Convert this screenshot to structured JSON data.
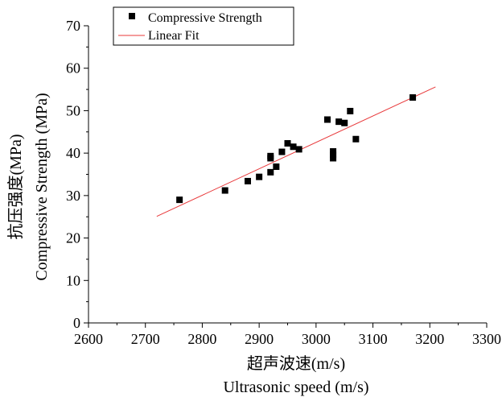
{
  "chart_data": {
    "type": "scatter",
    "title": "",
    "xlabel_cn": "超声波速(m/s)",
    "xlabel_en": "Ultrasonic speed (m/s)",
    "ylabel_cn": "抗压强度(MPa)",
    "ylabel_en": "Compressive Strength (MPa)",
    "xlim": [
      2600,
      3300
    ],
    "ylim": [
      0,
      70
    ],
    "x_ticks": [
      "2600",
      "2700",
      "2800",
      "2900",
      "3000",
      "3100",
      "3200",
      "3300"
    ],
    "y_ticks": [
      "0",
      "10",
      "20",
      "30",
      "40",
      "50",
      "60",
      "70"
    ],
    "grid": false,
    "legend_position": "top-left",
    "series": [
      {
        "name": "Compressive Strength",
        "kind": "scatter",
        "marker": "square",
        "color": "#000000",
        "points": [
          {
            "x": 2760,
            "y": 29.0
          },
          {
            "x": 2840,
            "y": 31.2
          },
          {
            "x": 2880,
            "y": 33.4
          },
          {
            "x": 2900,
            "y": 34.4
          },
          {
            "x": 2920,
            "y": 35.5
          },
          {
            "x": 2920,
            "y": 38.8
          },
          {
            "x": 2920,
            "y": 39.3
          },
          {
            "x": 2930,
            "y": 36.8
          },
          {
            "x": 2940,
            "y": 40.3
          },
          {
            "x": 2950,
            "y": 42.3
          },
          {
            "x": 2960,
            "y": 41.5
          },
          {
            "x": 2970,
            "y": 40.9
          },
          {
            "x": 3020,
            "y": 47.9
          },
          {
            "x": 3030,
            "y": 38.8
          },
          {
            "x": 3030,
            "y": 39.6
          },
          {
            "x": 3030,
            "y": 40.4
          },
          {
            "x": 3040,
            "y": 47.4
          },
          {
            "x": 3050,
            "y": 47.1
          },
          {
            "x": 3060,
            "y": 49.9
          },
          {
            "x": 3070,
            "y": 43.3
          },
          {
            "x": 3170,
            "y": 53.1
          }
        ]
      },
      {
        "name": "Linear Fit",
        "kind": "line",
        "color": "#e8383a",
        "points": [
          {
            "x": 2720,
            "y": 25.1
          },
          {
            "x": 3210,
            "y": 55.6
          }
        ]
      }
    ]
  }
}
